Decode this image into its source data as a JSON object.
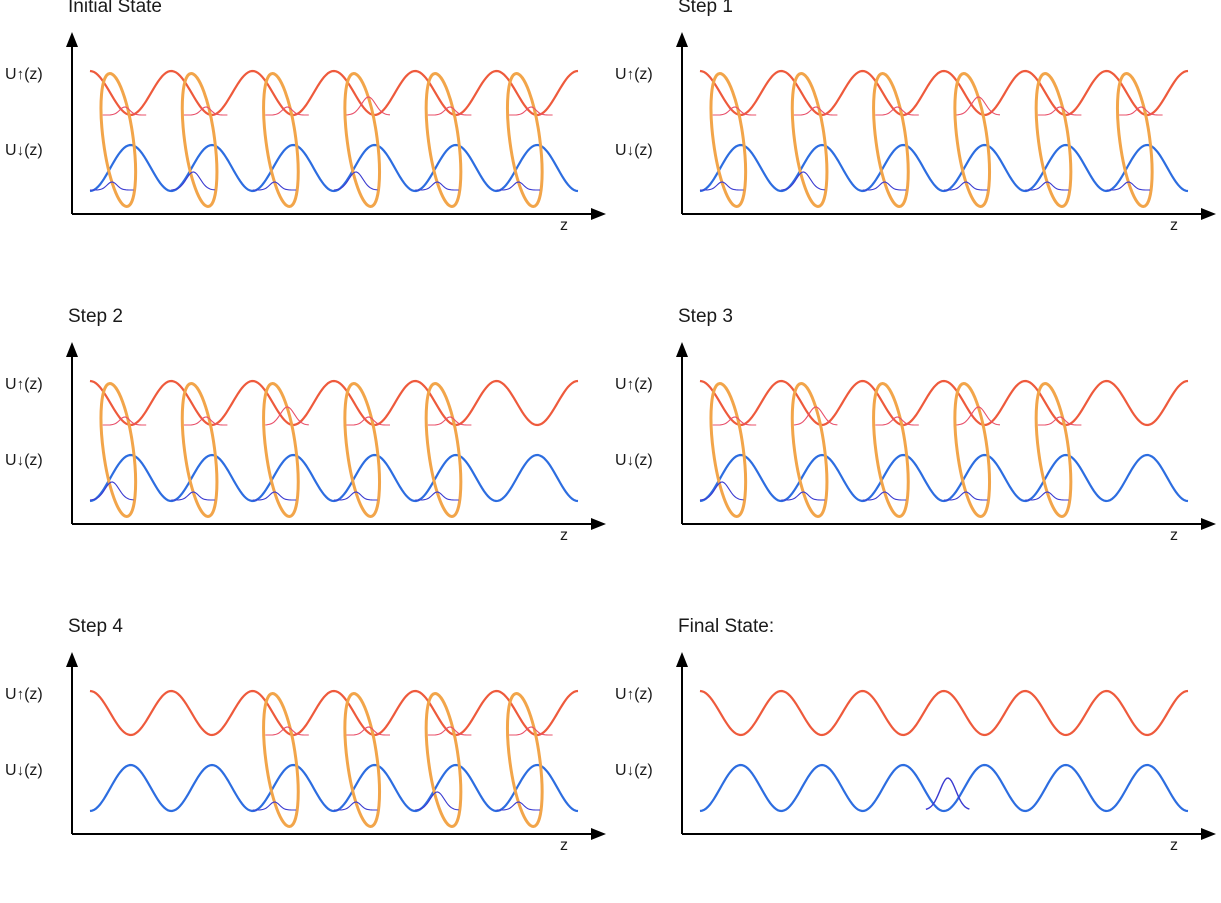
{
  "labels": {
    "u_up": "U",
    "u_down": "U",
    "u_arg": "(z)",
    "up_arrow": "↑",
    "down_arrow": "↓",
    "z_axis": "z"
  },
  "colors": {
    "up_potential": "#ee5a3c",
    "down_potential": "#2d6de0",
    "ellipse": "#f2a54a",
    "up_wavepacket": "#e8506a",
    "down_wavepacket": "#3a3ad0",
    "axis": "#000000"
  },
  "panels": [
    {
      "title": "Initial State",
      "up_pairs": [
        0,
        1,
        2,
        3,
        4,
        5
      ],
      "down_pairs": [
        0,
        1,
        2,
        3,
        4,
        5
      ],
      "down_peak_idx": [
        1,
        3
      ],
      "up_peak_idx": [
        3
      ],
      "ellipses": true
    },
    {
      "title": "Step 1",
      "up_pairs": [
        0,
        1,
        2,
        3,
        4,
        5
      ],
      "down_pairs": [
        0,
        1,
        2,
        3,
        4,
        5
      ],
      "down_peak_idx": [
        1
      ],
      "up_peak_idx": [
        3
      ],
      "ellipses": true
    },
    {
      "title": "Step 2",
      "up_pairs": [
        0,
        1,
        2,
        3,
        4
      ],
      "down_pairs": [
        0,
        1,
        2,
        3,
        4
      ],
      "down_peak_idx": [
        0
      ],
      "up_peak_idx": [
        2
      ],
      "ellipses": true
    },
    {
      "title": "Step 3",
      "up_pairs": [
        0,
        1,
        2,
        3,
        4
      ],
      "down_pairs": [
        0,
        1,
        2,
        3,
        4
      ],
      "down_peak_idx": [
        0
      ],
      "up_peak_idx": [
        1,
        3
      ],
      "ellipses": true
    },
    {
      "title": "Step 4",
      "up_pairs": [
        2,
        3,
        4,
        5
      ],
      "down_pairs": [
        2,
        3,
        4,
        5
      ],
      "down_peak_idx": [
        2
      ],
      "up_peak_idx": [
        4,
        5
      ],
      "ellipses": true
    },
    {
      "title": "Final State:",
      "up_pairs": [],
      "down_pairs": [],
      "down_peak_idx": [
        3
      ],
      "up_peak_idx": [],
      "ellipses": false,
      "single_down_at": 3
    }
  ]
}
